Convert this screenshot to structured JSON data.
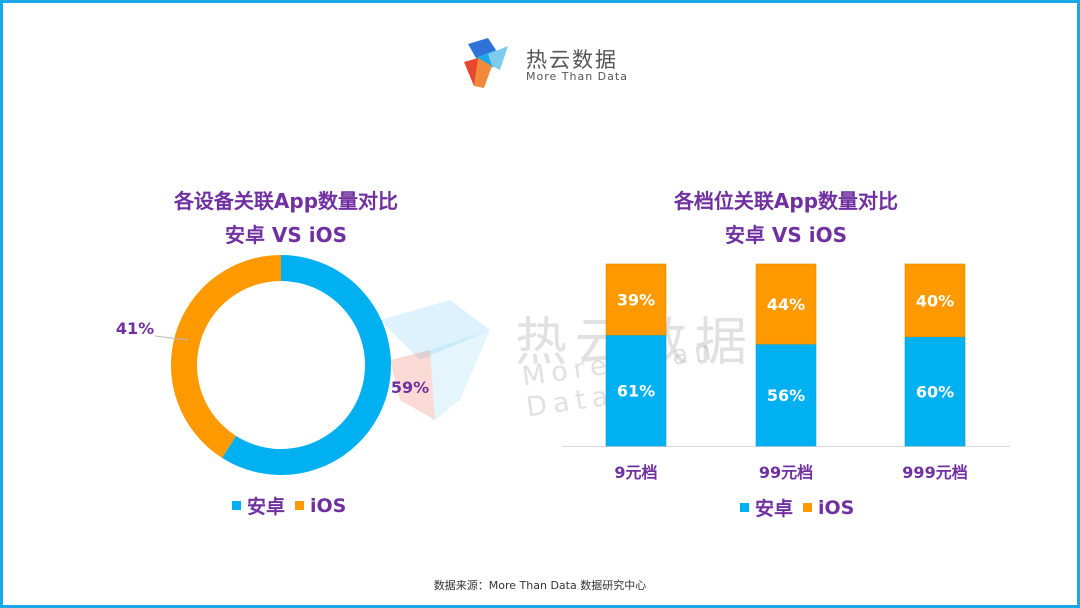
{
  "logo": {
    "name": "热云数据",
    "tagline": "More Than Data"
  },
  "watermark": {
    "name": "热云数据",
    "tagline": "More Than Data"
  },
  "colors": {
    "android": "#00b0f0",
    "ios": "#ff9900",
    "title": "#7030a0",
    "frame": "#1aa8e8"
  },
  "chart_data": [
    {
      "type": "pie",
      "title": "各设备关联App数量对比",
      "subtitle": "安卓 VS iOS",
      "categories": [
        "安卓",
        "iOS"
      ],
      "values": [
        59,
        41
      ],
      "labels": [
        "59%",
        "41%"
      ],
      "legend": "bottom"
    },
    {
      "type": "bar",
      "stacked": true,
      "title": "各档位关联App数量对比",
      "subtitle": "安卓 VS iOS",
      "categories": [
        "9元档",
        "99元档",
        "999元档"
      ],
      "series": [
        {
          "name": "安卓",
          "values": [
            61,
            56,
            60
          ],
          "labels": [
            "61%",
            "56%",
            "60%"
          ]
        },
        {
          "name": "iOS",
          "values": [
            39,
            44,
            40
          ],
          "labels": [
            "39%",
            "44%",
            "40%"
          ]
        }
      ],
      "ylim": [
        0,
        100
      ],
      "legend": "bottom"
    }
  ],
  "footer": "数据来源：More Than Data 数据研究中心"
}
